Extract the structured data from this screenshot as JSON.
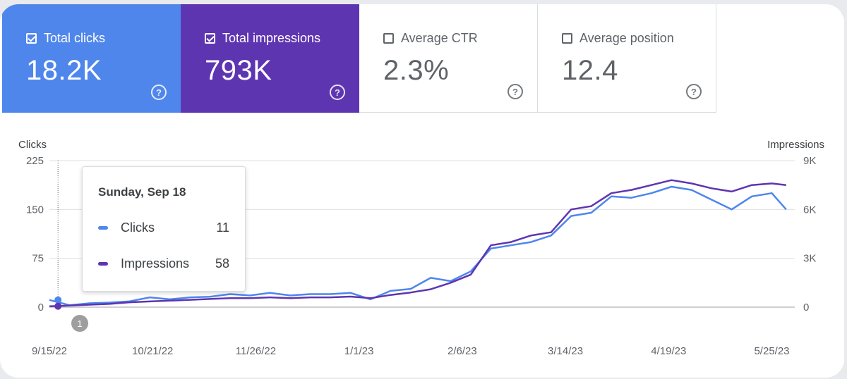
{
  "summary_cards": [
    {
      "id": "clicks",
      "label": "Total clicks",
      "value": "18.2K",
      "checked": true,
      "color": "#4f86ec"
    },
    {
      "id": "impressions",
      "label": "Total impressions",
      "value": "793K",
      "checked": true,
      "color": "#5e35b1"
    },
    {
      "id": "ctr",
      "label": "Average CTR",
      "value": "2.3%",
      "checked": false
    },
    {
      "id": "position",
      "label": "Average position",
      "value": "12.4",
      "checked": false
    }
  ],
  "tooltip": {
    "date": "Sunday, Sep 18",
    "rows": [
      {
        "label": "Clicks",
        "value": "11",
        "color": "#4f86ec"
      },
      {
        "label": "Impressions",
        "value": "58",
        "color": "#5e35b1"
      }
    ]
  },
  "event_marker": {
    "label": "1"
  },
  "chart_data": {
    "type": "line",
    "ylabel_left": "Clicks",
    "ylabel_right": "Impressions",
    "yticks_left": [
      "0",
      "75",
      "150",
      "225"
    ],
    "yticks_right": [
      "0",
      "3K",
      "6K",
      "9K"
    ],
    "ylim_left": [
      0,
      225
    ],
    "ylim_right": [
      0,
      9000
    ],
    "xlim": [
      "2022-09-15",
      "2023-06-02"
    ],
    "xticks": [
      "9/15/22",
      "10/21/22",
      "11/26/22",
      "1/1/23",
      "2/6/23",
      "3/14/23",
      "4/19/23",
      "5/25/23"
    ],
    "xtick_dates": [
      "2022-09-15",
      "2022-10-21",
      "2022-11-26",
      "2023-01-01",
      "2023-02-06",
      "2023-03-14",
      "2023-04-19",
      "2023-05-25"
    ],
    "grid": true,
    "selected_date": "2022-09-18",
    "series": [
      {
        "name": "Clicks",
        "axis": "left",
        "color": "#4f86ec",
        "x": [
          "2022-09-15",
          "2022-09-22",
          "2022-09-29",
          "2022-10-06",
          "2022-10-13",
          "2022-10-20",
          "2022-10-27",
          "2022-11-03",
          "2022-11-10",
          "2022-11-17",
          "2022-11-24",
          "2022-12-01",
          "2022-12-08",
          "2022-12-15",
          "2022-12-22",
          "2022-12-29",
          "2023-01-05",
          "2023-01-12",
          "2023-01-19",
          "2023-01-26",
          "2023-02-02",
          "2023-02-09",
          "2023-02-16",
          "2023-02-23",
          "2023-03-02",
          "2023-03-09",
          "2023-03-16",
          "2023-03-23",
          "2023-03-30",
          "2023-04-06",
          "2023-04-13",
          "2023-04-20",
          "2023-04-27",
          "2023-05-04",
          "2023-05-11",
          "2023-05-18",
          "2023-05-25",
          "2023-05-30"
        ],
        "y": [
          11,
          3,
          6,
          7,
          9,
          15,
          12,
          15,
          16,
          20,
          18,
          22,
          18,
          20,
          20,
          22,
          12,
          25,
          28,
          45,
          40,
          55,
          90,
          95,
          100,
          110,
          140,
          145,
          170,
          168,
          175,
          185,
          180,
          165,
          150,
          170,
          175,
          150
        ]
      },
      {
        "name": "Impressions",
        "axis": "right",
        "color": "#5e35b1",
        "x": [
          "2022-09-15",
          "2022-09-22",
          "2022-09-29",
          "2022-10-06",
          "2022-10-13",
          "2022-10-20",
          "2022-10-27",
          "2022-11-03",
          "2022-11-10",
          "2022-11-17",
          "2022-11-24",
          "2022-12-01",
          "2022-12-08",
          "2022-12-15",
          "2022-12-22",
          "2022-12-29",
          "2023-01-05",
          "2023-01-12",
          "2023-01-19",
          "2023-01-26",
          "2023-02-02",
          "2023-02-09",
          "2023-02-16",
          "2023-02-23",
          "2023-03-02",
          "2023-03-09",
          "2023-03-16",
          "2023-03-23",
          "2023-03-30",
          "2023-04-06",
          "2023-04-13",
          "2023-04-20",
          "2023-04-27",
          "2023-05-04",
          "2023-05-11",
          "2023-05-18",
          "2023-05-25",
          "2023-05-30"
        ],
        "y": [
          58,
          100,
          150,
          200,
          300,
          350,
          400,
          450,
          500,
          550,
          550,
          600,
          550,
          600,
          600,
          650,
          550,
          750,
          900,
          1100,
          1500,
          2000,
          3800,
          4000,
          4400,
          4600,
          6000,
          6200,
          7000,
          7200,
          7500,
          7800,
          7600,
          7300,
          7100,
          7500,
          7600,
          7500
        ]
      }
    ]
  }
}
